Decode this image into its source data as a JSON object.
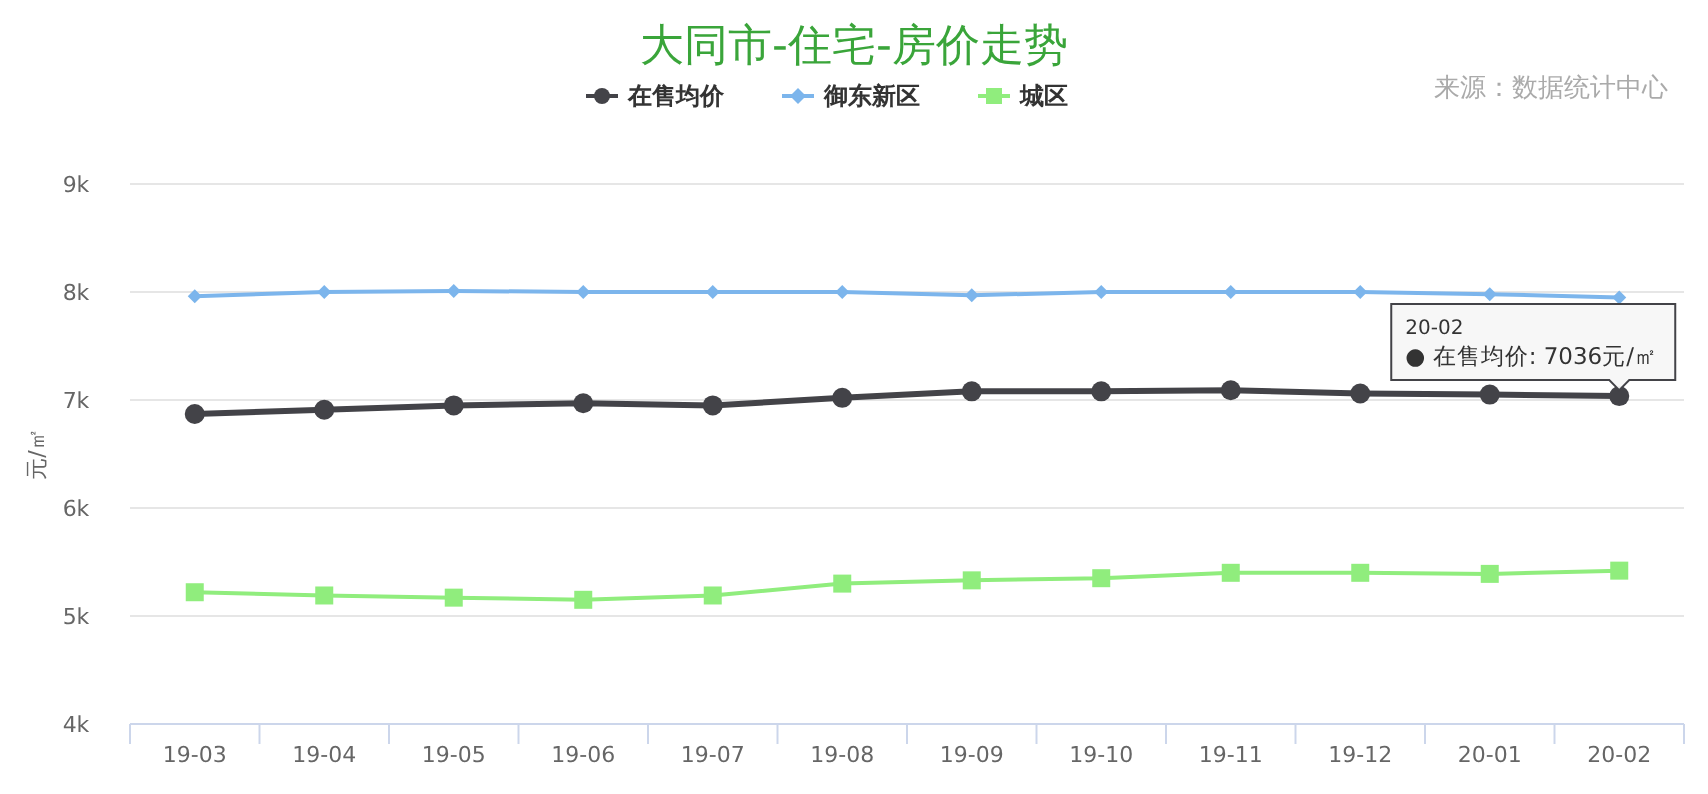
{
  "chart_data": {
    "type": "line",
    "title": "大同市-住宅-房价走势",
    "ylabel": "元/㎡",
    "categories": [
      "19-03",
      "19-04",
      "19-05",
      "19-06",
      "19-07",
      "19-08",
      "19-09",
      "19-10",
      "19-11",
      "19-12",
      "20-01",
      "20-02"
    ],
    "series": [
      {
        "name": "在售均价",
        "color": "#434348",
        "marker": "circle",
        "values": [
          6870,
          6910,
          6950,
          6970,
          6950,
          7020,
          7080,
          7080,
          7090,
          7060,
          7050,
          7036
        ]
      },
      {
        "name": "御东新区",
        "color": "#7cb5ec",
        "marker": "diamond",
        "values": [
          7960,
          8000,
          8010,
          8000,
          8000,
          8000,
          7970,
          8000,
          8000,
          8000,
          7980,
          7950
        ]
      },
      {
        "name": "城区",
        "color": "#90ed7d",
        "marker": "square",
        "values": [
          5220,
          5190,
          5170,
          5150,
          5190,
          5300,
          5330,
          5350,
          5400,
          5400,
          5390,
          5420
        ]
      }
    ],
    "ylim": [
      4000,
      9000
    ],
    "yticks": [
      {
        "value": 4000,
        "label": "4k"
      },
      {
        "value": 5000,
        "label": "5k"
      },
      {
        "value": 6000,
        "label": "6k"
      },
      {
        "value": 7000,
        "label": "7k"
      },
      {
        "value": 8000,
        "label": "8k"
      },
      {
        "value": 9000,
        "label": "9k"
      }
    ],
    "grid": "y",
    "legend": "top",
    "annotations": [
      "来源：数据统计中心",
      {
        "text": "20-02\n● 在售均价: 7036元/㎡",
        "x": "20-02",
        "y": 7036
      }
    ]
  }
}
